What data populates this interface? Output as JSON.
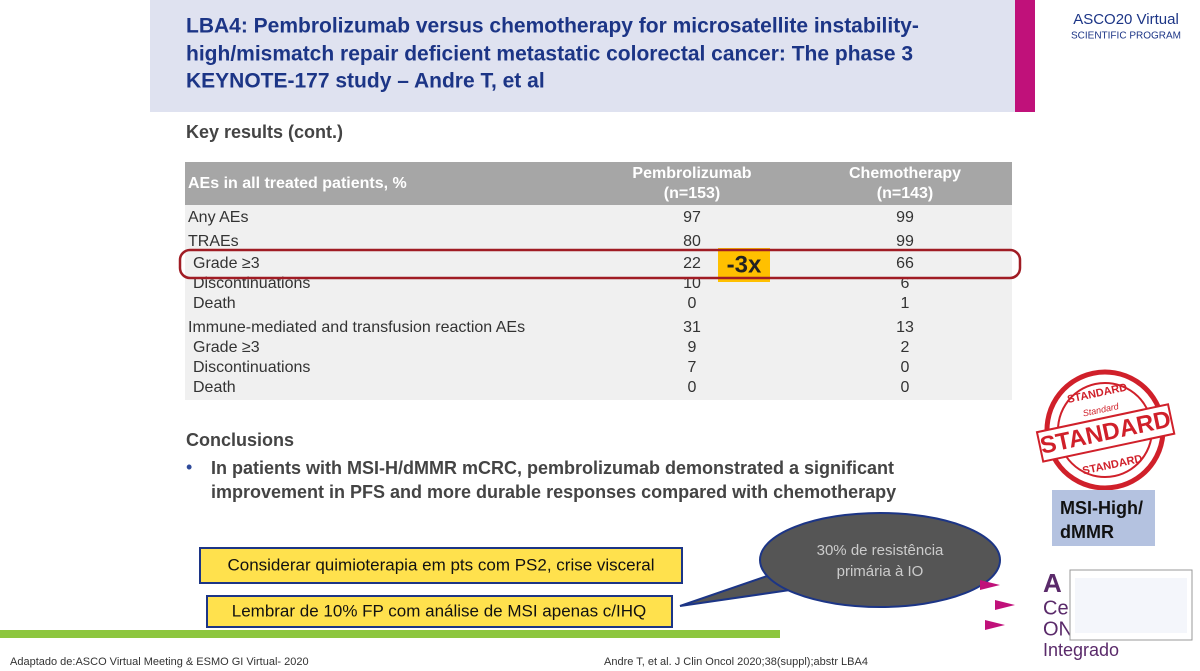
{
  "header": {
    "title_lines": [
      "LBA4: Pembrolizumab versus chemotherapy for microsatellite instability-",
      "high/mismatch repair deficient metastatic colorectal cancer: The phase 3",
      "KEYNOTE-177 study – Andre T, et al"
    ],
    "logo": [
      "ASCO20 Virtual",
      "SCIENTIFIC PROGRAM"
    ]
  },
  "section_title": "Key results (cont.)",
  "table": {
    "columns": [
      [
        "AEs in all treated patients, %"
      ],
      [
        "Pembrolizumab",
        "(n=153)"
      ],
      [
        "Chemotherapy",
        "(n=143)"
      ]
    ],
    "rows": [
      [
        "Any AEs",
        97,
        99
      ],
      [
        "TRAEs",
        80,
        99
      ],
      [
        "Grade ≥3",
        22,
        66
      ],
      [
        "Discontinuations",
        10,
        6
      ],
      [
        "Death",
        0,
        1
      ],
      [
        "Immune-mediated and transfusion reaction AEs",
        31,
        13
      ],
      [
        "Grade ≥3",
        9,
        2
      ],
      [
        "Discontinuations",
        7,
        0
      ],
      [
        "Death",
        0,
        0
      ]
    ]
  },
  "callout": "-3x",
  "conclusions": {
    "title": "Conclusions",
    "bullet_lines": [
      "In patients with MSI-H/dMMR mCRC, pembrolizumab demonstrated a significant",
      "improvement in PFS and more durable responses compared with chemotherapy"
    ]
  },
  "notes": [
    "Considerar quimioterapia em pts com PS2, crise visceral",
    "Lembrar de 10% FP com análise de MSI apenas c/IHQ"
  ],
  "bubble": [
    "30% de resistência",
    "primária à IO"
  ],
  "stamp": [
    "STANDARD",
    "Standard",
    "STANDARD",
    "STANDARD"
  ],
  "badge": [
    "MSI-High/",
    "dMMR"
  ],
  "brand": [
    "A",
    "Ce",
    "ON",
    "Integrado"
  ],
  "footer": {
    "left": "Adaptado de:ASCO Virtual Meeting & ESMO GI Virtual- 2020",
    "right": "Andre T, et al. J Clin Oncol 2020;38(suppl);abstr LBA4"
  }
}
